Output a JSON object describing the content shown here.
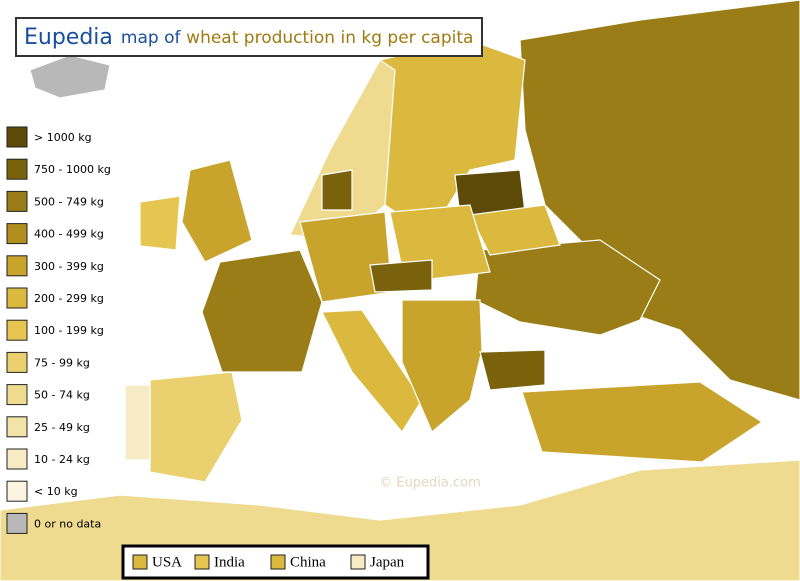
{
  "header": {
    "brand": "Eupedia",
    "prefix": "map of",
    "subject": "wheat production in kg per capita"
  },
  "legend": [
    {
      "label": "> 1000 kg",
      "color": "#5e4a08"
    },
    {
      "label": "750 - 1000 kg",
      "color": "#7a610c"
    },
    {
      "label": "500 - 749 kg",
      "color": "#9a7d16"
    },
    {
      "label": "400 - 499 kg",
      "color": "#b08f1e"
    },
    {
      "label": "300 - 399 kg",
      "color": "#c9a42c"
    },
    {
      "label": "200 - 299 kg",
      "color": "#dab93e"
    },
    {
      "label": "100 - 199 kg",
      "color": "#e6c550"
    },
    {
      "label": "75 - 99 kg",
      "color": "#ebd070"
    },
    {
      "label": "50 - 74 kg",
      "color": "#efdb90"
    },
    {
      "label": "25 - 49 kg",
      "color": "#f2e3a8"
    },
    {
      "label": "10 - 24 kg",
      "color": "#f6ebc4"
    },
    {
      "label": "< 10 kg",
      "color": "#faf4e0"
    },
    {
      "label": "0 or no data",
      "color": "#b8b8b8"
    }
  ],
  "comparison": [
    {
      "label": "USA",
      "color": "#dab93e"
    },
    {
      "label": "India",
      "color": "#e6c550"
    },
    {
      "label": "China",
      "color": "#dab93e"
    },
    {
      "label": "Japan",
      "color": "#f6ebc4"
    }
  ],
  "watermark": "© Eupedia.com"
}
